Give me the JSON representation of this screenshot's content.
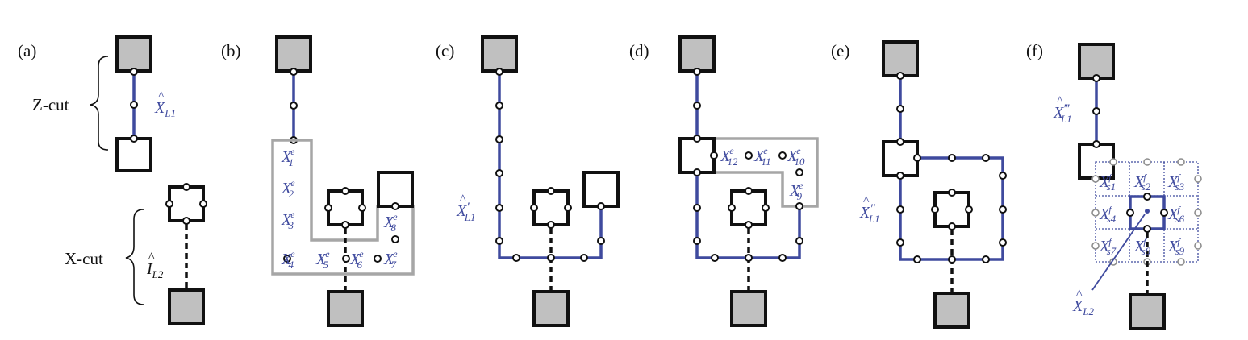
{
  "panels": {
    "a": {
      "label": "(a)",
      "zcut": "Z-cut",
      "xcut": "X-cut",
      "op_zl1": {
        "sym": "X",
        "sub": "L1",
        "acc": "^"
      },
      "op_il2": {
        "sym": "I",
        "sub": "L2",
        "acc": "^"
      }
    },
    "b": {
      "label": "(b)",
      "edges": [
        {
          "sym": "X",
          "sup": "e",
          "sub": "1"
        },
        {
          "sym": "X",
          "sup": "e",
          "sub": "2"
        },
        {
          "sym": "X",
          "sup": "e",
          "sub": "3"
        },
        {
          "sym": "X",
          "sup": "e",
          "sub": "4"
        },
        {
          "sym": "X",
          "sup": "e",
          "sub": "5"
        },
        {
          "sym": "X",
          "sup": "e",
          "sub": "6"
        },
        {
          "sym": "X",
          "sup": "e",
          "sub": "7"
        },
        {
          "sym": "X",
          "sup": "e",
          "sub": "8"
        }
      ]
    },
    "c": {
      "label": "(c)",
      "op": {
        "sym": "X",
        "sub": "L1",
        "prime": "′",
        "acc": "^"
      }
    },
    "d": {
      "label": "(d)",
      "edges": [
        {
          "sym": "X",
          "sup": "e",
          "sub": "9"
        },
        {
          "sym": "X",
          "sup": "e",
          "sub": "10"
        },
        {
          "sym": "X",
          "sup": "e",
          "sub": "11"
        },
        {
          "sym": "X",
          "sup": "e",
          "sub": "12"
        }
      ]
    },
    "e": {
      "label": "(e)",
      "op": {
        "sym": "X",
        "sub": "L1",
        "prime": "″",
        "acc": "^"
      }
    },
    "f": {
      "label": "(f)",
      "op_top": {
        "sym": "X",
        "sub": "L1",
        "prime": "‴",
        "acc": "^"
      },
      "op_bottom": {
        "sym": "X",
        "sub": "L2",
        "acc": "^"
      },
      "faces": [
        {
          "sym": "X",
          "sup": "f",
          "sub": "s1"
        },
        {
          "sym": "X",
          "sup": "f",
          "sub": "s2"
        },
        {
          "sym": "X",
          "sup": "f",
          "sub": "s3"
        },
        {
          "sym": "X",
          "sup": "f",
          "sub": "s4"
        },
        {
          "sym": "X",
          "sup": "f",
          "sub": "s6"
        },
        {
          "sym": "X",
          "sup": "f",
          "sub": "s7"
        },
        {
          "sym": "X",
          "sup": "f",
          "sub": "s8"
        },
        {
          "sym": "X",
          "sup": "f",
          "sub": "s9"
        }
      ]
    }
  },
  "colors": {
    "blue": "#3f4a9e",
    "gray_fill": "#c0c0c0",
    "outline_gray": "#a6a6a6",
    "black": "#111111"
  }
}
